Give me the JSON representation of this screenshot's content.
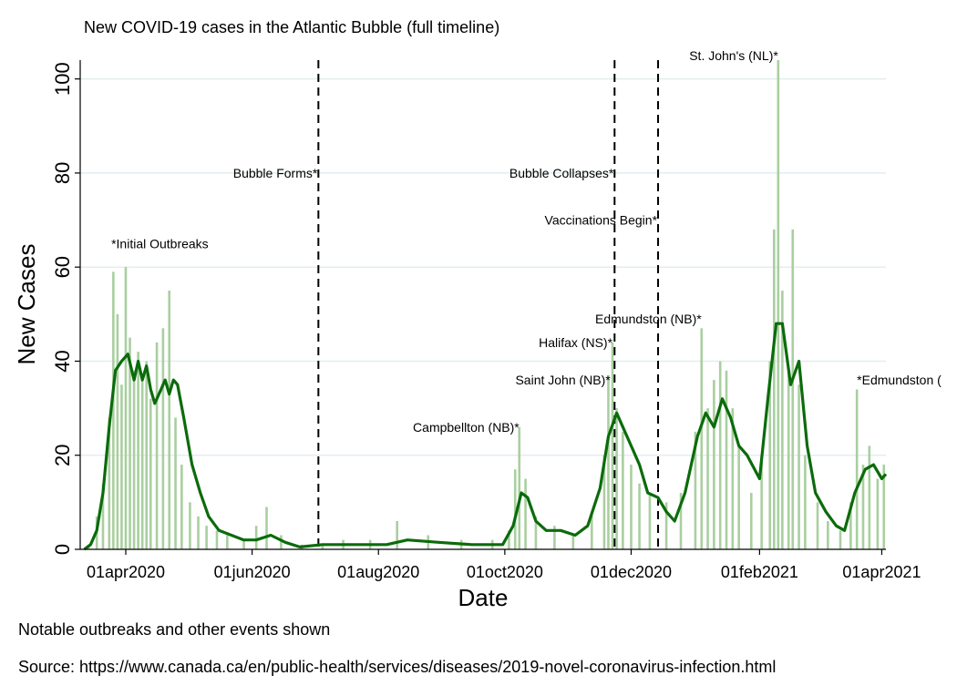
{
  "header": {
    "title": "New COVID-19 cases in the Atlantic Bubble (full timeline)"
  },
  "footer": {
    "note": "Notable outbreaks and other events shown",
    "source": "Source: https://www.canada.ca/en/public-health/services/diseases/2019-novel-coronavirus-infection.html"
  },
  "chart_data": {
    "type": "bar",
    "title": "New COVID-19 cases in the Atlantic Bubble (full timeline)",
    "xlabel": "Date",
    "ylabel": "New Cases",
    "ylim": [
      0,
      104
    ],
    "yticks": [
      0,
      20,
      40,
      60,
      80,
      100
    ],
    "xlim": [
      "2020-03-10",
      "2021-04-03"
    ],
    "xticks": [
      {
        "date": "2020-04-01",
        "label": "01apr2020"
      },
      {
        "date": "2020-06-01",
        "label": "01jun2020"
      },
      {
        "date": "2020-08-01",
        "label": "01aug2020"
      },
      {
        "date": "2020-10-01",
        "label": "01oct2020"
      },
      {
        "date": "2020-12-01",
        "label": "01dec2020"
      },
      {
        "date": "2021-02-01",
        "label": "01feb2021"
      },
      {
        "date": "2021-04-01",
        "label": "01apr2021"
      }
    ],
    "grid": true,
    "colors": {
      "bars": "#a9cfa0",
      "smoothed": "#0b6b0b",
      "grid": "#e3edf0",
      "event_line": "#000000"
    },
    "daily_cases": [
      {
        "date": "2020-03-14",
        "value": 1
      },
      {
        "date": "2020-03-18",
        "value": 7
      },
      {
        "date": "2020-03-21",
        "value": 14
      },
      {
        "date": "2020-03-24",
        "value": 28
      },
      {
        "date": "2020-03-26",
        "value": 59
      },
      {
        "date": "2020-03-28",
        "value": 50
      },
      {
        "date": "2020-03-30",
        "value": 35
      },
      {
        "date": "2020-04-01",
        "value": 60
      },
      {
        "date": "2020-04-03",
        "value": 45
      },
      {
        "date": "2020-04-05",
        "value": 38
      },
      {
        "date": "2020-04-07",
        "value": 42
      },
      {
        "date": "2020-04-09",
        "value": 36
      },
      {
        "date": "2020-04-11",
        "value": 40
      },
      {
        "date": "2020-04-13",
        "value": 32
      },
      {
        "date": "2020-04-16",
        "value": 44
      },
      {
        "date": "2020-04-19",
        "value": 47
      },
      {
        "date": "2020-04-22",
        "value": 55
      },
      {
        "date": "2020-04-25",
        "value": 28
      },
      {
        "date": "2020-04-28",
        "value": 18
      },
      {
        "date": "2020-05-02",
        "value": 10
      },
      {
        "date": "2020-05-06",
        "value": 7
      },
      {
        "date": "2020-05-10",
        "value": 5
      },
      {
        "date": "2020-05-15",
        "value": 4
      },
      {
        "date": "2020-05-20",
        "value": 3
      },
      {
        "date": "2020-05-28",
        "value": 2
      },
      {
        "date": "2020-06-03",
        "value": 5
      },
      {
        "date": "2020-06-08",
        "value": 9
      },
      {
        "date": "2020-06-15",
        "value": 3
      },
      {
        "date": "2020-06-25",
        "value": 1
      },
      {
        "date": "2020-07-05",
        "value": 1
      },
      {
        "date": "2020-07-15",
        "value": 2
      },
      {
        "date": "2020-07-28",
        "value": 2
      },
      {
        "date": "2020-08-10",
        "value": 6
      },
      {
        "date": "2020-08-25",
        "value": 3
      },
      {
        "date": "2020-09-10",
        "value": 2
      },
      {
        "date": "2020-09-25",
        "value": 2
      },
      {
        "date": "2020-10-03",
        "value": 4
      },
      {
        "date": "2020-10-06",
        "value": 17
      },
      {
        "date": "2020-10-08",
        "value": 26
      },
      {
        "date": "2020-10-11",
        "value": 15
      },
      {
        "date": "2020-10-16",
        "value": 7
      },
      {
        "date": "2020-10-25",
        "value": 5
      },
      {
        "date": "2020-11-03",
        "value": 3
      },
      {
        "date": "2020-11-12",
        "value": 8
      },
      {
        "date": "2020-11-18",
        "value": 20
      },
      {
        "date": "2020-11-20",
        "value": 37
      },
      {
        "date": "2020-11-22",
        "value": 44
      },
      {
        "date": "2020-11-24",
        "value": 30
      },
      {
        "date": "2020-11-27",
        "value": 25
      },
      {
        "date": "2020-12-01",
        "value": 18
      },
      {
        "date": "2020-12-05",
        "value": 14
      },
      {
        "date": "2020-12-10",
        "value": 12
      },
      {
        "date": "2020-12-18",
        "value": 10
      },
      {
        "date": "2020-12-25",
        "value": 12
      },
      {
        "date": "2021-01-01",
        "value": 25
      },
      {
        "date": "2021-01-04",
        "value": 47
      },
      {
        "date": "2021-01-07",
        "value": 30
      },
      {
        "date": "2021-01-10",
        "value": 36
      },
      {
        "date": "2021-01-13",
        "value": 40
      },
      {
        "date": "2021-01-16",
        "value": 38
      },
      {
        "date": "2021-01-19",
        "value": 30
      },
      {
        "date": "2021-01-22",
        "value": 22
      },
      {
        "date": "2021-01-28",
        "value": 12
      },
      {
        "date": "2021-02-02",
        "value": 20
      },
      {
        "date": "2021-02-06",
        "value": 40
      },
      {
        "date": "2021-02-08",
        "value": 68
      },
      {
        "date": "2021-02-10",
        "value": 104
      },
      {
        "date": "2021-02-12",
        "value": 55
      },
      {
        "date": "2021-02-15",
        "value": 38
      },
      {
        "date": "2021-02-17",
        "value": 68
      },
      {
        "date": "2021-02-20",
        "value": 35
      },
      {
        "date": "2021-02-23",
        "value": 20
      },
      {
        "date": "2021-03-01",
        "value": 10
      },
      {
        "date": "2021-03-06",
        "value": 6
      },
      {
        "date": "2021-03-12",
        "value": 4
      },
      {
        "date": "2021-03-17",
        "value": 10
      },
      {
        "date": "2021-03-20",
        "value": 34
      },
      {
        "date": "2021-03-23",
        "value": 18
      },
      {
        "date": "2021-03-26",
        "value": 22
      },
      {
        "date": "2021-03-30",
        "value": 15
      },
      {
        "date": "2021-04-02",
        "value": 18
      }
    ],
    "smoothed": [
      {
        "date": "2020-03-12",
        "value": 0
      },
      {
        "date": "2020-03-15",
        "value": 1
      },
      {
        "date": "2020-03-18",
        "value": 4
      },
      {
        "date": "2020-03-21",
        "value": 12
      },
      {
        "date": "2020-03-24",
        "value": 26
      },
      {
        "date": "2020-03-27",
        "value": 38
      },
      {
        "date": "2020-03-30",
        "value": 40
      },
      {
        "date": "2020-04-02",
        "value": 41.5
      },
      {
        "date": "2020-04-05",
        "value": 36
      },
      {
        "date": "2020-04-07",
        "value": 40
      },
      {
        "date": "2020-04-09",
        "value": 36
      },
      {
        "date": "2020-04-11",
        "value": 39
      },
      {
        "date": "2020-04-13",
        "value": 34
      },
      {
        "date": "2020-04-15",
        "value": 31
      },
      {
        "date": "2020-04-17",
        "value": 33
      },
      {
        "date": "2020-04-20",
        "value": 36
      },
      {
        "date": "2020-04-22",
        "value": 33
      },
      {
        "date": "2020-04-24",
        "value": 36
      },
      {
        "date": "2020-04-26",
        "value": 35
      },
      {
        "date": "2020-04-29",
        "value": 28
      },
      {
        "date": "2020-05-03",
        "value": 18
      },
      {
        "date": "2020-05-07",
        "value": 12
      },
      {
        "date": "2020-05-11",
        "value": 7
      },
      {
        "date": "2020-05-16",
        "value": 4
      },
      {
        "date": "2020-05-22",
        "value": 3
      },
      {
        "date": "2020-05-28",
        "value": 2
      },
      {
        "date": "2020-06-03",
        "value": 2
      },
      {
        "date": "2020-06-10",
        "value": 3
      },
      {
        "date": "2020-06-17",
        "value": 1.5
      },
      {
        "date": "2020-06-24",
        "value": 0.5
      },
      {
        "date": "2020-07-05",
        "value": 1
      },
      {
        "date": "2020-07-20",
        "value": 1
      },
      {
        "date": "2020-08-05",
        "value": 1
      },
      {
        "date": "2020-08-15",
        "value": 2
      },
      {
        "date": "2020-08-30",
        "value": 1.5
      },
      {
        "date": "2020-09-15",
        "value": 1
      },
      {
        "date": "2020-09-30",
        "value": 1
      },
      {
        "date": "2020-10-05",
        "value": 5
      },
      {
        "date": "2020-10-09",
        "value": 12
      },
      {
        "date": "2020-10-12",
        "value": 11
      },
      {
        "date": "2020-10-16",
        "value": 6
      },
      {
        "date": "2020-10-21",
        "value": 4
      },
      {
        "date": "2020-10-28",
        "value": 4
      },
      {
        "date": "2020-11-04",
        "value": 3
      },
      {
        "date": "2020-11-10",
        "value": 5
      },
      {
        "date": "2020-11-16",
        "value": 13
      },
      {
        "date": "2020-11-20",
        "value": 24
      },
      {
        "date": "2020-11-24",
        "value": 29
      },
      {
        "date": "2020-11-27",
        "value": 26
      },
      {
        "date": "2020-12-01",
        "value": 22
      },
      {
        "date": "2020-12-05",
        "value": 18
      },
      {
        "date": "2020-12-09",
        "value": 12
      },
      {
        "date": "2020-12-14",
        "value": 11
      },
      {
        "date": "2020-12-18",
        "value": 8
      },
      {
        "date": "2020-12-22",
        "value": 6
      },
      {
        "date": "2020-12-27",
        "value": 12
      },
      {
        "date": "2021-01-02",
        "value": 24
      },
      {
        "date": "2021-01-06",
        "value": 29
      },
      {
        "date": "2021-01-10",
        "value": 26
      },
      {
        "date": "2021-01-14",
        "value": 32
      },
      {
        "date": "2021-01-18",
        "value": 28
      },
      {
        "date": "2021-01-22",
        "value": 22
      },
      {
        "date": "2021-01-26",
        "value": 20
      },
      {
        "date": "2021-02-01",
        "value": 15
      },
      {
        "date": "2021-02-05",
        "value": 32
      },
      {
        "date": "2021-02-09",
        "value": 48
      },
      {
        "date": "2021-02-12",
        "value": 48
      },
      {
        "date": "2021-02-16",
        "value": 35
      },
      {
        "date": "2021-02-20",
        "value": 40
      },
      {
        "date": "2021-02-24",
        "value": 22
      },
      {
        "date": "2021-02-28",
        "value": 12
      },
      {
        "date": "2021-03-05",
        "value": 8
      },
      {
        "date": "2021-03-10",
        "value": 5
      },
      {
        "date": "2021-03-14",
        "value": 4
      },
      {
        "date": "2021-03-19",
        "value": 12
      },
      {
        "date": "2021-03-24",
        "value": 17
      },
      {
        "date": "2021-03-28",
        "value": 18
      },
      {
        "date": "2021-04-01",
        "value": 15
      },
      {
        "date": "2021-04-03",
        "value": 16
      }
    ],
    "event_lines": [
      {
        "date": "2020-07-03",
        "label": "Bubble Forms*",
        "label_value": 80
      },
      {
        "date": "2020-11-23",
        "label": "Bubble Collapses*",
        "label_value": 80
      },
      {
        "date": "2020-12-14",
        "label": "Vaccinations Begin*",
        "label_value": 70
      }
    ],
    "annotations": [
      {
        "date": "2020-03-25",
        "value": 65,
        "text": "*Initial Outbreaks",
        "anchor": "start"
      },
      {
        "date": "2020-10-08",
        "value": 26,
        "text": "Campbellton (NB)*",
        "anchor": "end"
      },
      {
        "date": "2020-11-21",
        "value": 36,
        "text": "Saint John (NB)*",
        "anchor": "end"
      },
      {
        "date": "2020-11-22",
        "value": 44,
        "text": "Halifax (NS)*",
        "anchor": "end"
      },
      {
        "date": "2021-01-04",
        "value": 49,
        "text": "Edmundston (NB)*",
        "anchor": "end"
      },
      {
        "date": "2021-02-10",
        "value": 105,
        "text": "St. John's (NL)*",
        "anchor": "end"
      },
      {
        "date": "2021-03-20",
        "value": 36,
        "text": "*Edmundston (",
        "anchor": "start"
      }
    ]
  }
}
